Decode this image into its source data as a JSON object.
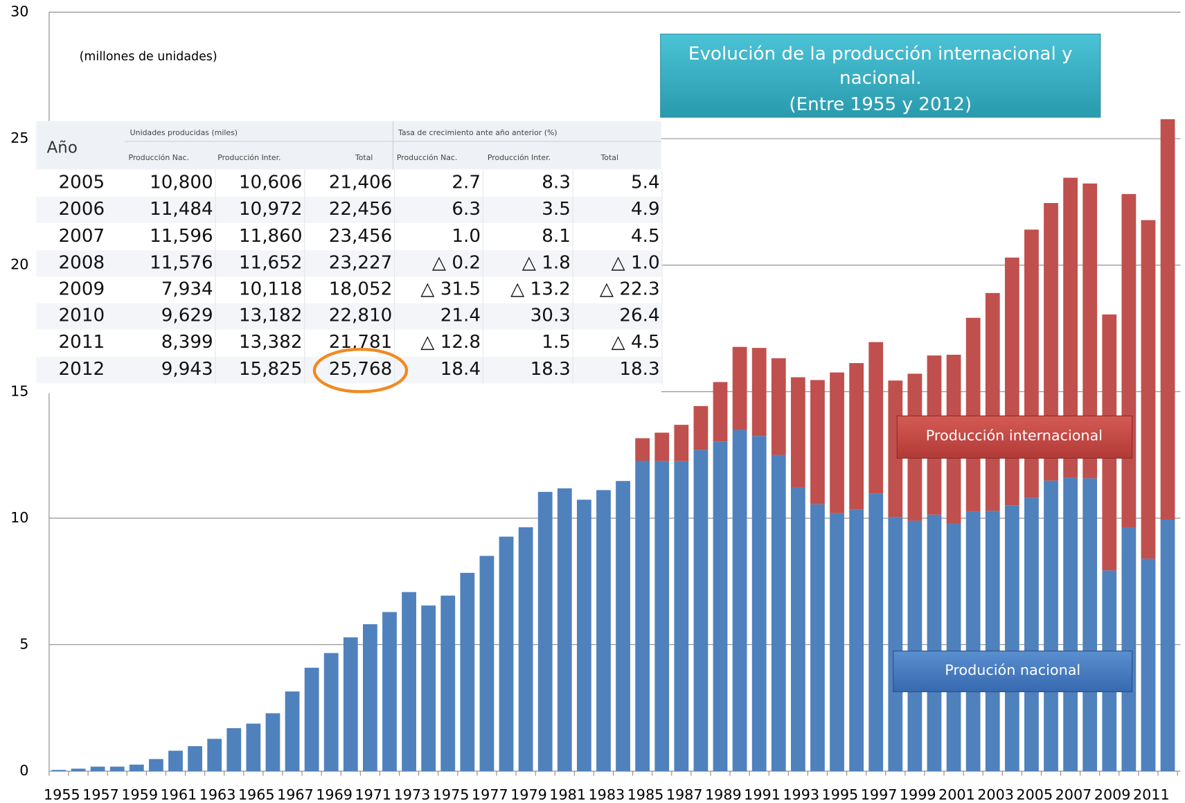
{
  "chart_data": {
    "type": "bar",
    "stacked": true,
    "title": [
      "Evolución de la producción internacional y",
      "nacional.",
      "(Entre 1955 y 2012)"
    ],
    "y_unit": "(millones de unidades)",
    "categories": [
      "1955",
      null,
      "1957",
      null,
      "1959",
      null,
      "1961",
      null,
      "1963",
      null,
      "1965",
      null,
      "1967",
      null,
      "1969",
      null,
      "1971",
      null,
      "1973",
      null,
      "1975",
      null,
      "1977",
      null,
      "1979",
      null,
      "1981",
      null,
      "1983",
      null,
      "1985",
      null,
      "1987",
      null,
      "1989",
      null,
      "1991",
      null,
      "1993",
      null,
      "1995",
      null,
      "1997",
      null,
      "1999",
      null,
      "2001",
      null,
      "2003",
      null,
      "2005",
      null,
      "2007",
      null,
      "2009",
      null,
      "2011",
      null
    ],
    "series": [
      {
        "name": "Produción nacional",
        "color": "#4f81bd",
        "values": [
          0.05,
          0.1,
          0.18,
          0.18,
          0.26,
          0.48,
          0.81,
          0.99,
          1.28,
          1.7,
          1.88,
          2.29,
          3.15,
          4.09,
          4.67,
          5.29,
          5.81,
          6.29,
          7.08,
          6.55,
          6.94,
          7.84,
          8.51,
          9.27,
          9.64,
          11.04,
          11.18,
          10.73,
          11.11,
          11.47,
          12.27,
          12.26,
          12.25,
          12.7,
          13.03,
          13.49,
          13.25,
          12.5,
          11.23,
          10.55,
          10.2,
          10.35,
          10.98,
          10.05,
          9.9,
          10.14,
          9.78,
          10.26,
          10.29,
          10.51,
          10.8,
          11.484,
          11.596,
          11.576,
          7.934,
          9.629,
          8.399,
          9.943
        ]
      },
      {
        "name": "Producción internacional",
        "color": "#c0504d",
        "values": [
          0,
          0,
          0,
          0,
          0,
          0,
          0,
          0,
          0,
          0,
          0,
          0,
          0,
          0,
          0,
          0,
          0,
          0,
          0,
          0,
          0,
          0,
          0,
          0,
          0,
          0,
          0,
          0,
          0,
          0,
          0.89,
          1.12,
          1.44,
          1.73,
          2.35,
          3.28,
          3.48,
          3.82,
          4.34,
          4.91,
          5.56,
          5.78,
          5.98,
          5.39,
          5.81,
          6.29,
          6.68,
          7.66,
          8.61,
          9.79,
          10.606,
          10.972,
          11.86,
          11.652,
          10.118,
          13.182,
          13.382,
          15.825
        ]
      }
    ],
    "ylim": [
      0,
      30
    ],
    "yticks": [
      0,
      5,
      10,
      15,
      20,
      25,
      30
    ],
    "grid": true
  },
  "table": {
    "group_headers": [
      "Unidades producidas (miles)",
      "Tasa de crecimiento ante año anterior (%)"
    ],
    "columns": [
      "Año",
      "Producción Nac.",
      "Producción Inter.",
      "Total",
      "Producción Nac.",
      "Producción Inter.",
      "Total"
    ],
    "rows": [
      [
        "2005",
        "10,800",
        "10,606",
        "21,406",
        "2.7",
        "8.3",
        "5.4"
      ],
      [
        "2006",
        "11,484",
        "10,972",
        "22,456",
        "6.3",
        "3.5",
        "4.9"
      ],
      [
        "2007",
        "11,596",
        "11,860",
        "23,456",
        "1.0",
        "8.1",
        "4.5"
      ],
      [
        "2008",
        "11,576",
        "11,652",
        "23,227",
        "△ 0.2",
        "△ 1.8",
        "△ 1.0"
      ],
      [
        "2009",
        "7,934",
        "10,118",
        "18,052",
        "△ 31.5",
        "△ 13.2",
        "△ 22.3"
      ],
      [
        "2010",
        "9,629",
        "13,182",
        "22,810",
        "21.4",
        "30.3",
        "26.4"
      ],
      [
        "2011",
        "8,399",
        "13,382",
        "21,781",
        "△ 12.8",
        "1.5",
        "△ 4.5"
      ],
      [
        "2012",
        "9,943",
        "15,825",
        "25,768",
        "18.4",
        "18.3",
        "18.3"
      ]
    ]
  }
}
